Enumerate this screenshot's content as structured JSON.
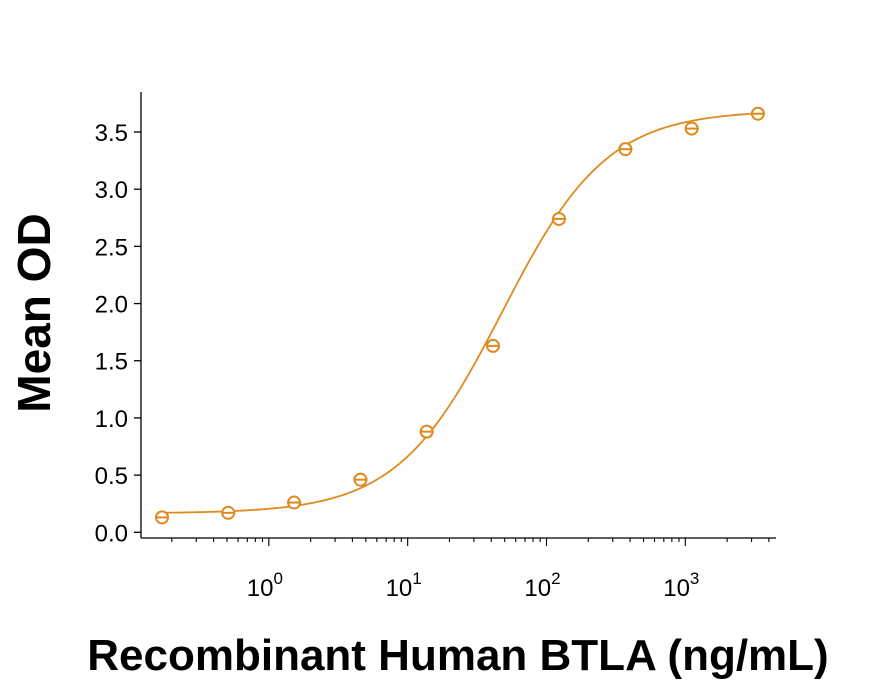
{
  "chart_data": {
    "type": "scatter",
    "xlabel": "Recombinant Human BTLA (ng/mL)",
    "ylabel": "Mean OD",
    "x_scale": "log",
    "xlim": [
      0.12,
      4500
    ],
    "ylim": [
      -0.05,
      3.85
    ],
    "x_ticks": [
      {
        "value": 1,
        "base": "10",
        "exp": "0"
      },
      {
        "value": 10,
        "base": "10",
        "exp": "1"
      },
      {
        "value": 100,
        "base": "10",
        "exp": "2"
      },
      {
        "value": 1000,
        "base": "10",
        "exp": "3"
      }
    ],
    "y_ticks": [
      "0.0",
      "0.5",
      "1.0",
      "1.5",
      "2.0",
      "2.5",
      "3.0",
      "3.5"
    ],
    "grid": false,
    "color": "#e08a1e",
    "series": [
      {
        "points": [
          {
            "x": 0.17,
            "y": 0.13
          },
          {
            "x": 0.51,
            "y": 0.17
          },
          {
            "x": 1.52,
            "y": 0.26
          },
          {
            "x": 4.57,
            "y": 0.46
          },
          {
            "x": 13.7,
            "y": 0.88
          },
          {
            "x": 41.2,
            "y": 1.63
          },
          {
            "x": 123,
            "y": 2.74
          },
          {
            "x": 370,
            "y": 3.35
          },
          {
            "x": 1111,
            "y": 3.53
          },
          {
            "x": 3333,
            "y": 3.66
          }
        ],
        "fit": {
          "model": "4PL",
          "bottom": 0.165,
          "top": 3.69,
          "ec50": 48,
          "hill": 1.15
        }
      }
    ]
  }
}
